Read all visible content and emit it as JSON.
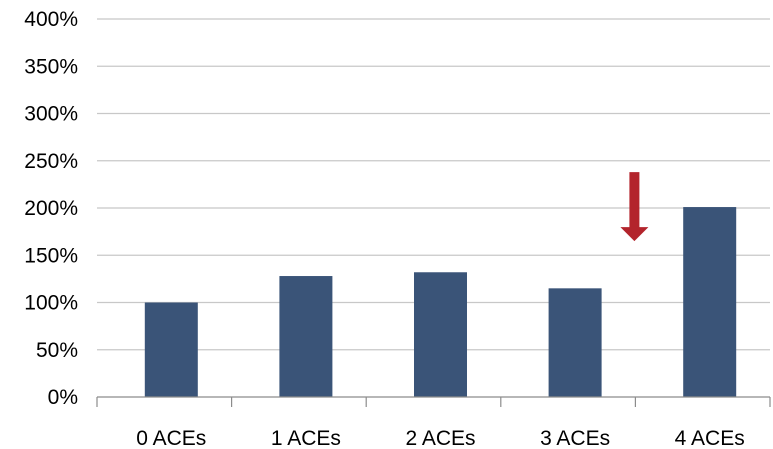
{
  "chart_data": {
    "type": "bar",
    "title": "",
    "xlabel": "",
    "ylabel": "",
    "categories": [
      "0 ACEs",
      "1 ACEs",
      "2 ACEs",
      "3 ACEs",
      "4 ACEs"
    ],
    "values": [
      100,
      128,
      132,
      115,
      201
    ],
    "ylim": [
      0,
      400
    ],
    "yticks": [
      0,
      50,
      100,
      150,
      200,
      250,
      300,
      350,
      400
    ],
    "ytick_labels": [
      "0%",
      "50%",
      "100%",
      "150%",
      "200%",
      "250%",
      "300%",
      "350%",
      "400%"
    ],
    "grid": true,
    "legend": "none",
    "bar_color": "#3a5478",
    "annotation": {
      "type": "down-arrow",
      "color": "#b3242c",
      "between_categories": [
        "3 ACEs",
        "4 ACEs"
      ],
      "y_top": 238,
      "y_bottom": 165
    }
  }
}
